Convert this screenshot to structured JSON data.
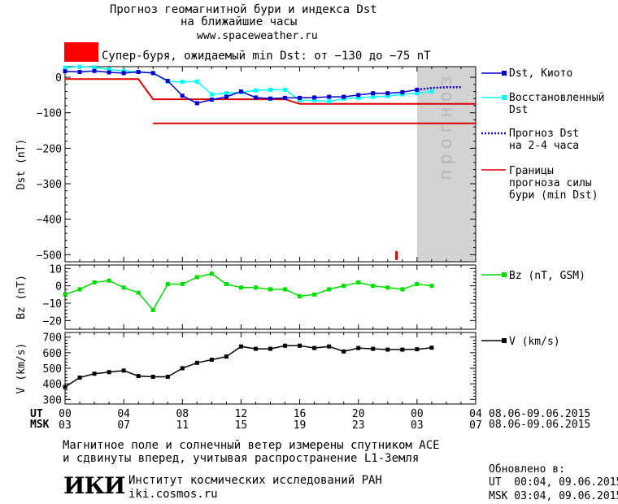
{
  "header": {
    "title_line1": "Прогноз геомагнитной бури и индекса Dst",
    "title_line2": "на ближайшие часы",
    "url": "www.spaceweather.ru",
    "storm_text": "Супер-буря, ожидаемый min Dst: от −130 до −75 nT",
    "storm_color": "#ff0000"
  },
  "forecast_label": "прогноз",
  "legend": {
    "dst_kyoto": "Dst, Киото",
    "restored_1": "Восстановленный",
    "restored_2": "Dst",
    "forecast_1": "Прогноз Dst",
    "forecast_2": "на 2-4 часа",
    "bounds_1": "Границы",
    "bounds_2": "прогноза силы",
    "bounds_3": "бури (min Dst)",
    "bz": "Bz (nT, GSM)",
    "v": "V (km/s)"
  },
  "colors": {
    "dst_kyoto": "#0000cc",
    "restored": "#00ffff",
    "forecast": "#0000cc",
    "bounds": "#dd0000",
    "bz": "#00dd00",
    "v": "#000000",
    "forecast_shade": "#d3d3d3"
  },
  "time_axis": {
    "ut_label": "UT",
    "msk_label": "MSK",
    "ut_ticks": [
      "00",
      "04",
      "08",
      "12",
      "16",
      "20",
      "00",
      "04"
    ],
    "msk_ticks": [
      "03",
      "07",
      "11",
      "15",
      "19",
      "23",
      "03",
      "07"
    ],
    "ut_range": "08.06-09.06.2015",
    "msk_range": "08.06-09.06.2015"
  },
  "footer": {
    "note_line1": "Магнитное поле и солнечный ветер измерены спутником ACE",
    "note_line2": "и сдвинуты вперед, учитывая распространение L1-Земля",
    "logo": "ИКИ",
    "institute": "Институт космических исследований РАН",
    "site": "iki.cosmos.ru",
    "updated_label": "Обновлено в:",
    "updated_ut": "UT  00:04, 09.06.2015",
    "updated_msk": "MSK 03:04, 09.06.2015"
  },
  "chart_data": [
    {
      "type": "line",
      "ylabel": "Dst (nT)",
      "xlabel": "",
      "x_hours_range": [
        0,
        28
      ],
      "ylim": [
        -520,
        30
      ],
      "yticks": [
        0,
        -100,
        -200,
        -300,
        -400,
        -500
      ],
      "forecast_region_hours": [
        24,
        28
      ],
      "series": [
        {
          "name": "Dst, Киото",
          "x": [
            0,
            1,
            2,
            3,
            4,
            5,
            6,
            7,
            8,
            9,
            10,
            11,
            12,
            13,
            14,
            15,
            16,
            17,
            18,
            19,
            20,
            21,
            22,
            23,
            24
          ],
          "y": [
            17,
            15,
            18,
            14,
            12,
            15,
            12,
            -10,
            -52,
            -73,
            -63,
            -55,
            -40,
            -57,
            -60,
            -58,
            -58,
            -57,
            -55,
            -55,
            -50,
            -45,
            -45,
            -42,
            -35
          ]
        },
        {
          "name": "Восстановленный Dst",
          "x": [
            0,
            1,
            2,
            3,
            4,
            5,
            6,
            7,
            8,
            9,
            10,
            11,
            12,
            13,
            14,
            15,
            16,
            17,
            18,
            19,
            20,
            21,
            22,
            23,
            24,
            25
          ],
          "y": [
            27,
            30,
            28,
            22,
            18,
            15,
            12,
            -12,
            -13,
            -12,
            -48,
            -45,
            -42,
            -37,
            -35,
            -35,
            -65,
            -65,
            -68,
            -60,
            -58,
            -55,
            -53,
            -48,
            -45,
            -40
          ]
        },
        {
          "name": "Прогноз Dst на 2-4 часа",
          "x": [
            24,
            25,
            26,
            27
          ],
          "y": [
            -35,
            -30,
            -28,
            -28
          ]
        },
        {
          "name": "Границы прогноза силы бури (min Dst)",
          "upper": {
            "x": [
              0,
              5,
              6,
              15,
              16,
              28
            ],
            "y": [
              -5,
              -5,
              -62,
              -62,
              -75,
              -75
            ]
          },
          "lower": {
            "x": [
              6,
              28
            ],
            "y": [
              -130,
              -130
            ]
          }
        }
      ],
      "marker": {
        "x": 22.6,
        "y_range": [
          -490,
          -515
        ]
      }
    },
    {
      "type": "line",
      "ylabel": "Bz (nT)",
      "ylim": [
        -25,
        12
      ],
      "yticks": [
        10,
        0,
        -10,
        -20
      ],
      "series": [
        {
          "name": "Bz (nT, GSM)",
          "x": [
            0,
            1,
            2,
            3,
            4,
            5,
            6,
            7,
            8,
            9,
            10,
            11,
            12,
            13,
            14,
            15,
            16,
            17,
            18,
            19,
            20,
            21,
            22,
            23,
            24,
            25
          ],
          "y": [
            -5,
            -2,
            2,
            3,
            -1,
            -4,
            -14,
            1,
            1,
            5,
            7,
            1,
            -1,
            -1,
            -2,
            -2,
            -6,
            -5,
            -2,
            0,
            2,
            0,
            -1,
            -2,
            1,
            0
          ]
        }
      ]
    },
    {
      "type": "line",
      "ylabel": "V (km/s)",
      "ylim": [
        270,
        730
      ],
      "yticks": [
        700,
        600,
        500,
        400,
        300
      ],
      "series": [
        {
          "name": "V (km/s)",
          "x": [
            0,
            1,
            2,
            3,
            4,
            5,
            6,
            7,
            8,
            9,
            10,
            11,
            12,
            13,
            14,
            15,
            16,
            17,
            18,
            19,
            20,
            21,
            22,
            23,
            24,
            25
          ],
          "y": [
            380,
            440,
            465,
            475,
            485,
            450,
            445,
            445,
            500,
            535,
            555,
            575,
            640,
            625,
            625,
            645,
            645,
            630,
            640,
            608,
            630,
            625,
            620,
            620,
            622,
            632
          ]
        }
      ]
    }
  ]
}
